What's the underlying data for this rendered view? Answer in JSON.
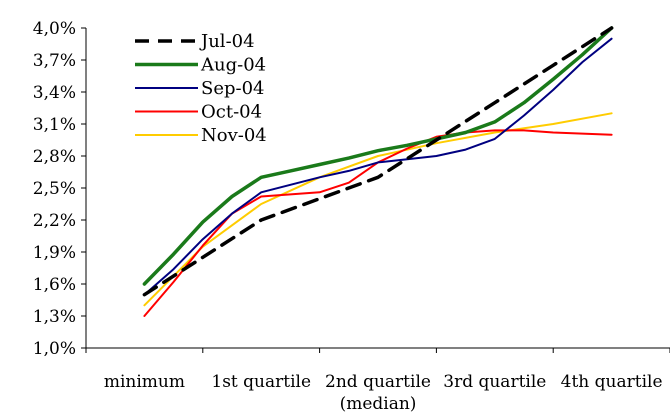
{
  "chart_data": {
    "type": "line",
    "categories": [
      "minimum",
      "1st quartile",
      "2nd quartile\n(median)",
      "3rd quartile",
      "4th quartile"
    ],
    "y_ticks": [
      "1,0%",
      "1,3%",
      "1,6%",
      "1,9%",
      "2,2%",
      "2,5%",
      "2,8%",
      "3,1%",
      "3,4%",
      "3,7%",
      "4,0%"
    ],
    "ylim": [
      1.0,
      4.0
    ],
    "legend_position": "top-left",
    "grid": false,
    "series": [
      {
        "name": "Jul-04",
        "color": "#000000",
        "dash": "dashed",
        "x": [
          0,
          0.5,
          1,
          1.5,
          2,
          2.5,
          3,
          3.5,
          4
        ],
        "values": [
          1.5,
          1.85,
          2.2,
          2.4,
          2.6,
          2.95,
          3.3,
          3.65,
          4.0
        ]
      },
      {
        "name": "Aug-04",
        "color": "#1a7a1a",
        "dash": "solid",
        "x": [
          0,
          0.25,
          0.5,
          0.75,
          1,
          1.25,
          1.5,
          1.75,
          2,
          2.25,
          2.5,
          2.75,
          3,
          3.25,
          3.5,
          3.75,
          4
        ],
        "values": [
          1.6,
          1.88,
          2.18,
          2.42,
          2.6,
          2.66,
          2.72,
          2.78,
          2.85,
          2.9,
          2.96,
          3.02,
          3.12,
          3.3,
          3.52,
          3.75,
          4.0
        ]
      },
      {
        "name": "Sep-04",
        "color": "#000080",
        "dash": "solid",
        "x": [
          0,
          0.25,
          0.5,
          0.75,
          1,
          1.25,
          1.5,
          1.75,
          2,
          2.25,
          2.5,
          2.75,
          3,
          3.25,
          3.5,
          3.75,
          4
        ],
        "values": [
          1.5,
          1.74,
          2.02,
          2.26,
          2.46,
          2.53,
          2.6,
          2.66,
          2.74,
          2.77,
          2.8,
          2.86,
          2.96,
          3.18,
          3.42,
          3.68,
          3.9
        ]
      },
      {
        "name": "Oct-04",
        "color": "#ff0000",
        "dash": "solid",
        "x": [
          0,
          0.25,
          0.5,
          0.75,
          1,
          1.25,
          1.5,
          1.75,
          2,
          2.25,
          2.5,
          2.75,
          3,
          3.25,
          3.5,
          3.75,
          4
        ],
        "values": [
          1.3,
          1.62,
          1.96,
          2.26,
          2.42,
          2.44,
          2.46,
          2.55,
          2.74,
          2.87,
          2.98,
          3.02,
          3.04,
          3.04,
          3.02,
          3.01,
          3.0
        ]
      },
      {
        "name": "Nov-04",
        "color": "#ffcc00",
        "dash": "solid",
        "x": [
          0,
          0.5,
          1,
          1.5,
          2,
          2.5,
          3,
          3.5,
          4
        ],
        "values": [
          1.4,
          1.95,
          2.35,
          2.6,
          2.8,
          2.92,
          3.02,
          3.1,
          3.2
        ]
      }
    ]
  }
}
